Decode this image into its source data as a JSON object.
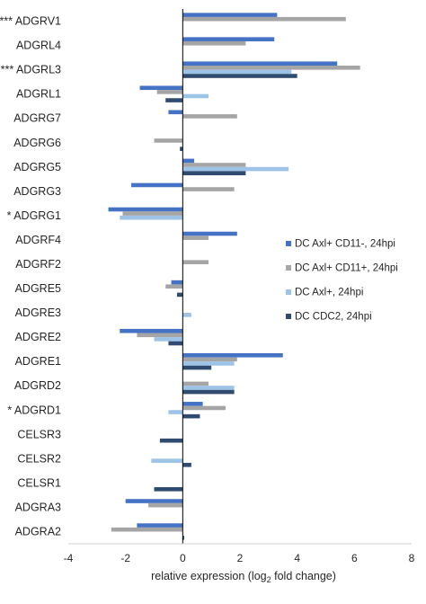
{
  "chart_data": {
    "type": "bar",
    "orientation": "horizontal",
    "categories": [
      "ADGRV1",
      "ADGRL4",
      "ADGRL3",
      "ADGRL1",
      "ADGRG7",
      "ADGRG6",
      "ADGRG5",
      "ADGRG3",
      "ADGRG1",
      "ADGRF4",
      "ADGRF2",
      "ADGRE5",
      "ADGRE3",
      "ADGRE2",
      "ADGRE1",
      "ADGRD2",
      "ADGRD1",
      "CELSR3",
      "CELSR2",
      "CELSR1",
      "ADGRA3",
      "ADGRA2"
    ],
    "category_markers": [
      "***",
      "",
      "***",
      "",
      "",
      "",
      "",
      "",
      "*",
      "",
      "",
      "",
      "",
      "",
      "",
      "",
      "*",
      "",
      "",
      "",
      "",
      ""
    ],
    "series": [
      {
        "name": "DC Axl+ CD11-, 24hpi",
        "color": "#4472c4",
        "values": [
          3.3,
          3.2,
          5.4,
          -1.5,
          -0.5,
          0,
          0.4,
          -1.8,
          -2.6,
          1.9,
          0,
          -0.4,
          0,
          -2.2,
          3.5,
          0,
          0.7,
          0,
          0,
          0,
          -2.0,
          -1.6
        ]
      },
      {
        "name": "DC Axl+ CD11+, 24hpi",
        "color": "#a5a5a5",
        "values": [
          5.7,
          2.2,
          6.2,
          -0.9,
          1.9,
          -1.0,
          2.2,
          1.8,
          -2.1,
          0.9,
          0.9,
          -0.6,
          0,
          -1.6,
          1.9,
          0.9,
          1.5,
          0,
          0,
          0,
          -1.2,
          -2.5
        ]
      },
      {
        "name": "DC Axl+, 24hpi",
        "color": "#9dc3e6",
        "values": [
          0,
          0,
          3.8,
          0.9,
          0,
          0,
          3.7,
          0,
          -2.2,
          0,
          0,
          0,
          0.3,
          -1.0,
          1.8,
          1.8,
          -0.5,
          0,
          -1.1,
          0,
          0,
          0
        ]
      },
      {
        "name": "DC CDC2, 24hpi",
        "color": "#2f4b6f",
        "values": [
          0,
          0,
          4.0,
          -0.6,
          0,
          -0.1,
          2.2,
          0,
          0,
          0,
          0,
          -0.2,
          0,
          -0.5,
          1.0,
          1.8,
          0.6,
          -0.8,
          0.3,
          -1.0,
          0,
          0.05
        ]
      }
    ],
    "xlabel_prefix": "relative expression (log",
    "xlabel_sub": "2",
    "xlabel_suffix": " fold change)",
    "xlim": [
      -4,
      8
    ],
    "xticks": [
      -4,
      -2,
      0,
      2,
      4,
      6,
      8
    ],
    "grid": false,
    "legend_position": "right"
  }
}
